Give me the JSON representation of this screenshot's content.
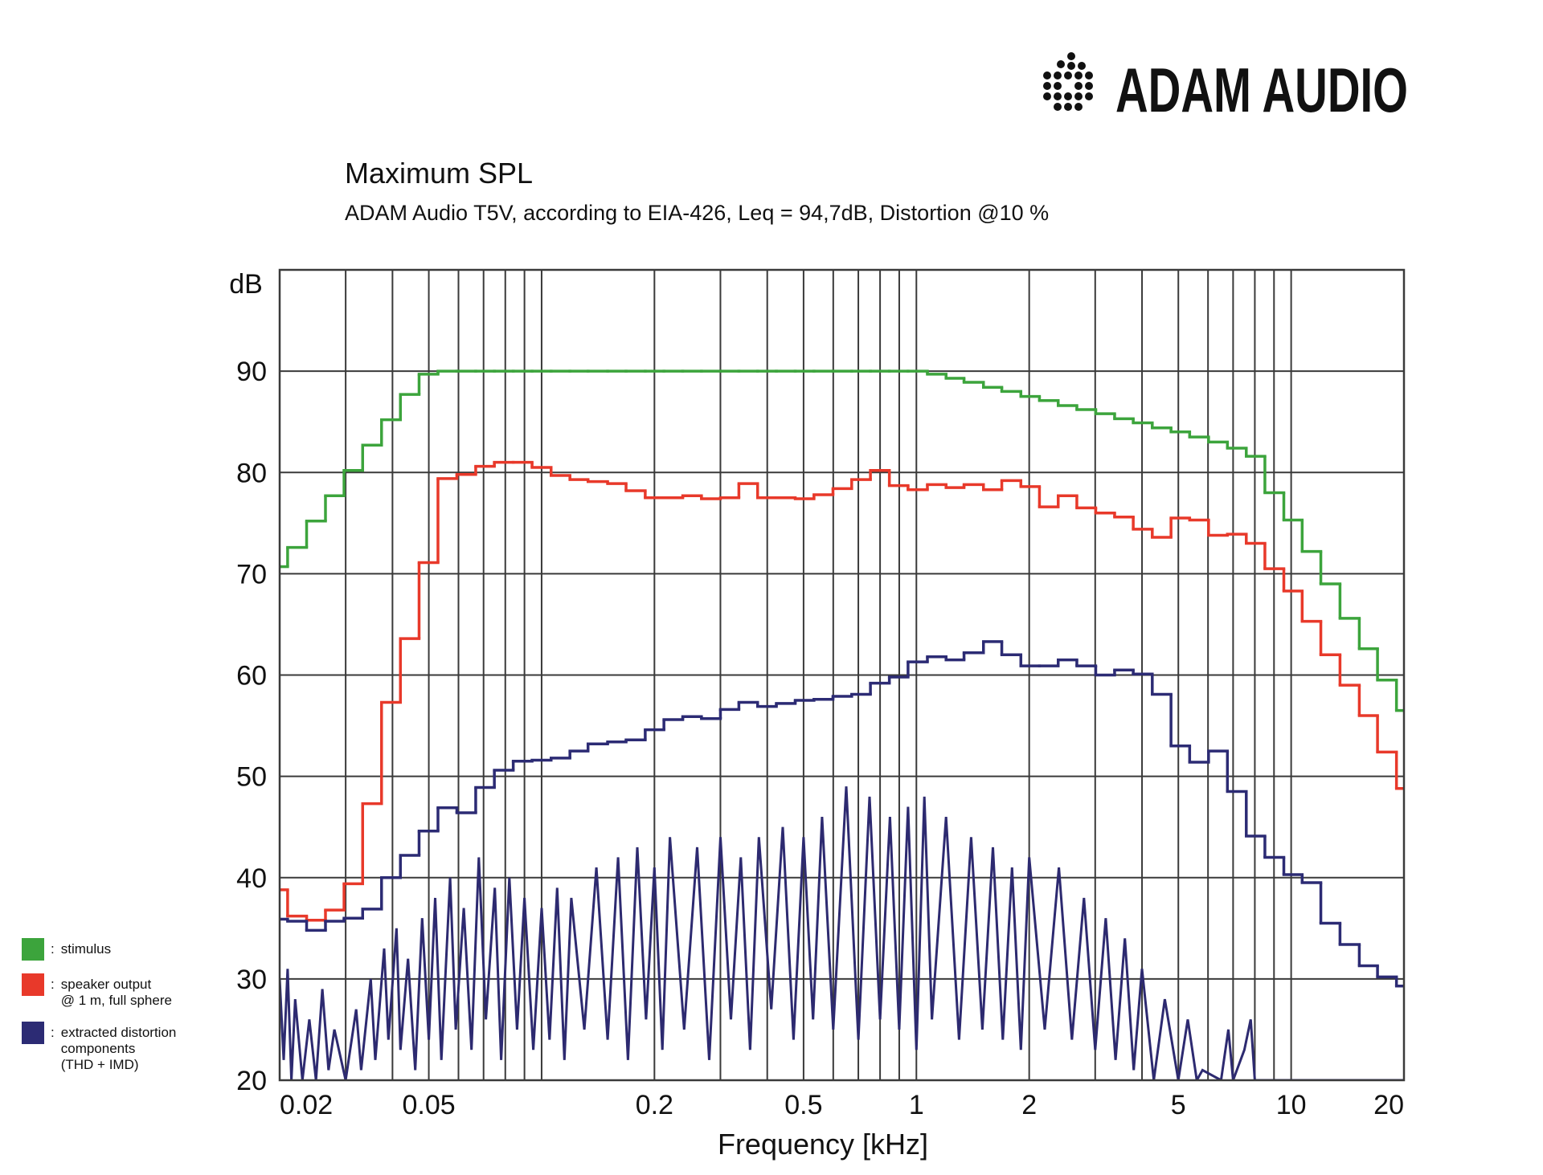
{
  "logo": "ADAM AUDIO",
  "chart_data": {
    "type": "step",
    "title": "Maximum SPL",
    "subtitle": "ADAM Audio T5V, according to EIA-426, Leq = 94,7dB, Distortion @10 %",
    "xlabel": "Frequency [kHz]",
    "ylabel": "dB",
    "xscale": "log",
    "xlim": [
      0.02,
      20
    ],
    "ylim": [
      20,
      100
    ],
    "xticks": [
      0.02,
      0.05,
      0.2,
      0.5,
      1,
      2,
      5,
      10,
      20
    ],
    "xticks_minor": [
      0.03,
      0.04,
      0.06,
      0.07,
      0.08,
      0.09,
      0.1,
      0.3,
      0.4,
      0.6,
      0.7,
      0.8,
      0.9,
      3,
      4,
      6,
      7,
      8,
      9
    ],
    "yticks": [
      20,
      30,
      40,
      50,
      60,
      70,
      80,
      90
    ],
    "grid": true,
    "legend": "bottom-left",
    "x": [
      0.02,
      0.021,
      0.0236,
      0.0265,
      0.0297,
      0.0333,
      0.0374,
      0.042,
      0.0471,
      0.0529,
      0.0594,
      0.0667,
      0.0748,
      0.084,
      0.0943,
      0.106,
      0.119,
      0.133,
      0.15,
      0.168,
      0.189,
      0.212,
      0.238,
      0.267,
      0.3,
      0.336,
      0.377,
      0.423,
      0.475,
      0.533,
      0.599,
      0.672,
      0.754,
      0.847,
      0.95,
      1.07,
      1.2,
      1.34,
      1.51,
      1.69,
      1.9,
      2.13,
      2.39,
      2.68,
      3.01,
      3.38,
      3.79,
      4.26,
      4.78,
      5.36,
      6.02,
      6.76,
      7.59,
      8.51,
      9.56,
      10.7,
      12.0,
      13.5,
      15.2,
      17.0,
      19.1
    ],
    "series": [
      {
        "name": "stimulus",
        "color": "#3ca43c",
        "values": [
          70.7,
          72.6,
          75.2,
          77.7,
          80.2,
          82.7,
          85.2,
          87.7,
          89.7,
          90,
          90,
          90,
          90,
          90,
          90,
          90,
          90,
          90,
          90,
          90,
          90,
          90,
          90,
          90,
          90,
          90,
          90,
          90,
          90,
          90,
          90,
          90,
          90,
          90,
          90,
          89.7,
          89.3,
          88.9,
          88.4,
          88.0,
          87.5,
          87.1,
          86.6,
          86.2,
          85.8,
          85.3,
          84.9,
          84.4,
          84.0,
          83.5,
          83.0,
          82.4,
          81.6,
          78.0,
          75.3,
          72.2,
          69.0,
          65.6,
          62.6,
          59.5,
          56.5
        ]
      },
      {
        "name": "speaker output\n@ 1 m, full sphere",
        "color": "#e8392a",
        "values": [
          38.8,
          36.2,
          35.8,
          36.8,
          39.4,
          47.3,
          57.3,
          63.6,
          71.1,
          79.4,
          79.8,
          80.6,
          81.0,
          81.0,
          80.5,
          79.7,
          79.3,
          79.1,
          78.9,
          78.2,
          77.5,
          77.5,
          77.7,
          77.4,
          77.5,
          78.9,
          77.5,
          77.5,
          77.4,
          77.8,
          78.4,
          79.3,
          80.2,
          78.7,
          78.3,
          78.8,
          78.5,
          78.8,
          78.3,
          79.2,
          78.6,
          76.6,
          77.7,
          76.5,
          76.0,
          75.6,
          74.4,
          73.6,
          75.5,
          75.3,
          73.8,
          73.9,
          73.0,
          70.5,
          68.3,
          65.3,
          62.0,
          59.0,
          56.0,
          52.4,
          48.8
        ]
      },
      {
        "name": "extracted distortion\ncomponents\n(THD + IMD)",
        "color": "#2c2b74",
        "values": [
          35.9,
          35.7,
          34.8,
          35.7,
          36.0,
          36.9,
          40.0,
          42.2,
          44.6,
          46.9,
          46.4,
          48.9,
          50.6,
          51.5,
          51.6,
          51.8,
          52.5,
          53.2,
          53.4,
          53.6,
          54.6,
          55.6,
          55.9,
          55.7,
          56.6,
          57.3,
          56.9,
          57.2,
          57.5,
          57.6,
          57.9,
          58.1,
          59.2,
          59.8,
          61.3,
          61.8,
          61.5,
          62.2,
          63.3,
          62.0,
          60.9,
          60.9,
          61.5,
          60.9,
          60.0,
          60.5,
          60.1,
          58.1,
          53.0,
          51.4,
          52.5,
          48.5,
          44.1,
          42.0,
          40.3,
          39.5,
          35.5,
          33.4,
          31.3,
          30.2,
          29.3
        ]
      }
    ],
    "spectrum": {
      "color": "#2d2a70",
      "x": [
        0.02,
        0.0205,
        0.021,
        0.0215,
        0.022,
        0.023,
        0.024,
        0.025,
        0.026,
        0.027,
        0.028,
        0.03,
        0.032,
        0.033,
        0.035,
        0.036,
        0.038,
        0.039,
        0.041,
        0.042,
        0.044,
        0.046,
        0.048,
        0.05,
        0.052,
        0.054,
        0.057,
        0.059,
        0.062,
        0.065,
        0.068,
        0.071,
        0.075,
        0.078,
        0.082,
        0.086,
        0.09,
        0.095,
        0.1,
        0.105,
        0.11,
        0.115,
        0.12,
        0.13,
        0.14,
        0.15,
        0.16,
        0.17,
        0.18,
        0.19,
        0.2,
        0.21,
        0.22,
        0.24,
        0.26,
        0.28,
        0.3,
        0.32,
        0.34,
        0.36,
        0.38,
        0.41,
        0.44,
        0.47,
        0.5,
        0.53,
        0.56,
        0.6,
        0.65,
        0.7,
        0.75,
        0.8,
        0.85,
        0.9,
        0.95,
        1.0,
        1.05,
        1.1,
        1.2,
        1.3,
        1.4,
        1.5,
        1.6,
        1.7,
        1.8,
        1.9,
        2.0,
        2.2,
        2.4,
        2.6,
        2.8,
        3.0,
        3.2,
        3.4,
        3.6,
        3.8,
        4.0,
        4.3,
        4.6,
        5.0,
        5.3,
        5.6,
        5.8,
        6.5,
        6.8,
        7.0,
        7.5,
        7.8,
        8.0,
        20
      ],
      "values": [
        30,
        22,
        31,
        20,
        28,
        20,
        26,
        20,
        29,
        21,
        25,
        20,
        27,
        21,
        30,
        22,
        33,
        24,
        35,
        23,
        32,
        21,
        36,
        24,
        38,
        22,
        40,
        25,
        37,
        23,
        42,
        26,
        39,
        22,
        40,
        25,
        38,
        23,
        37,
        24,
        39,
        22,
        38,
        25,
        41,
        24,
        42,
        22,
        43,
        26,
        41,
        23,
        44,
        25,
        43,
        22,
        44,
        26,
        42,
        23,
        44,
        27,
        45,
        24,
        44,
        26,
        46,
        25,
        49,
        24,
        48,
        26,
        46,
        25,
        47,
        23,
        48,
        26,
        46,
        24,
        44,
        25,
        43,
        24,
        41,
        23,
        42,
        25,
        41,
        24,
        38,
        23,
        36,
        22,
        34,
        21,
        31,
        20,
        28,
        20,
        26,
        20,
        21,
        20,
        25,
        20,
        23,
        26,
        20,
        20
      ]
    }
  }
}
